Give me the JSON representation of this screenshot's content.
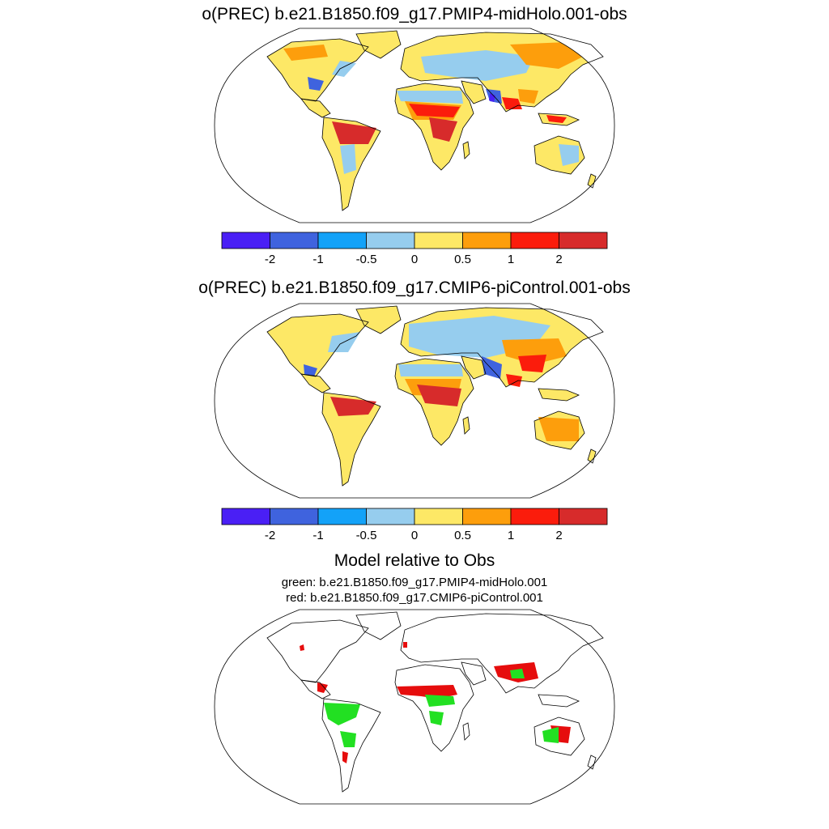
{
  "panel1": {
    "title": "o(PREC) b.e21.B1850.f09_g17.PMIP4-midHolo.001-obs"
  },
  "panel2": {
    "title": "o(PREC) b.e21.B1850.f09_g17.CMIP6-piControl.001-obs"
  },
  "panel3": {
    "title": "Model relative to Obs",
    "line1": "green: b.e21.B1850.f09_g17.PMIP4-midHolo.001",
    "line2": "red: b.e21.B1850.f09_g17.CMIP6-piControl.001"
  },
  "colorbar": {
    "colors": [
      "#4a1ff5",
      "#3f63de",
      "#13a2f8",
      "#96cdee",
      "#fde866",
      "#fd9e0c",
      "#fb1c0c",
      "#d72b2b"
    ],
    "labels": [
      "-2",
      "-1",
      "-0.5",
      "0",
      "0.5",
      "1",
      "2"
    ]
  },
  "highlight_colors": {
    "green": "#22e022",
    "red": "#e60d0d"
  }
}
